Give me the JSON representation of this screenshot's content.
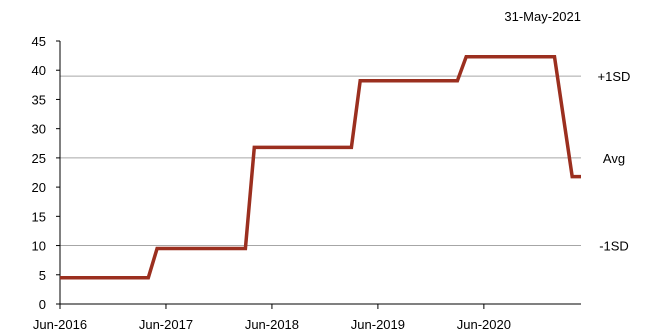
{
  "chart_data": {
    "type": "line",
    "title": "",
    "date_label": "31-May-2021",
    "xlabel": "",
    "ylabel": "",
    "ylim": [
      0,
      45
    ],
    "yticks": [
      0,
      5,
      10,
      15,
      20,
      25,
      30,
      35,
      40,
      45
    ],
    "x_ticks": [
      "Jun-2016",
      "Jun-2017",
      "Jun-2018",
      "Jun-2019",
      "Jun-2020"
    ],
    "x_range": [
      "2016-06",
      "2021-05"
    ],
    "grid": false,
    "reference_lines": [
      {
        "label": "+1SD",
        "value": 39
      },
      {
        "label": "Avg",
        "value": 25
      },
      {
        "label": "-1SD",
        "value": 10
      }
    ],
    "series": [
      {
        "name": "",
        "color": "#9b2f1f",
        "points": [
          {
            "x": "2016-06",
            "y": 4.5
          },
          {
            "x": "2017-04",
            "y": 4.5
          },
          {
            "x": "2017-05",
            "y": 9.5
          },
          {
            "x": "2018-03",
            "y": 9.5
          },
          {
            "x": "2018-04",
            "y": 26.8
          },
          {
            "x": "2019-03",
            "y": 26.8
          },
          {
            "x": "2019-04",
            "y": 38.2
          },
          {
            "x": "2020-03",
            "y": 38.2
          },
          {
            "x": "2020-04",
            "y": 42.3
          },
          {
            "x": "2021-02",
            "y": 42.3
          },
          {
            "x": "2021-04",
            "y": 21.8
          },
          {
            "x": "2021-05",
            "y": 21.8
          }
        ]
      }
    ],
    "colors": {
      "axis": "#000000",
      "reference_line": "#a6a6a6"
    }
  }
}
